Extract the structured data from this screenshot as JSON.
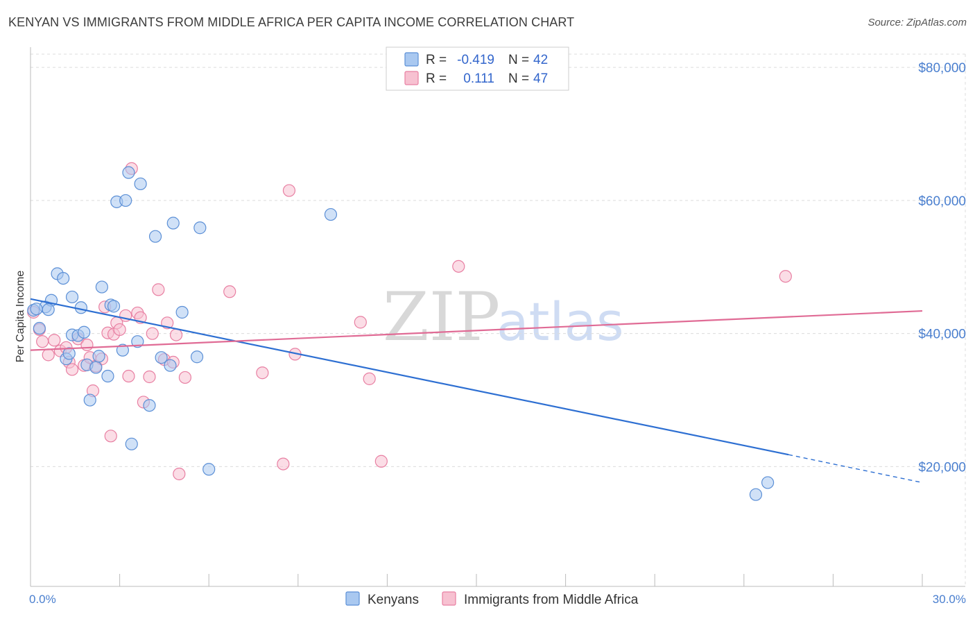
{
  "title": "KENYAN VS IMMIGRANTS FROM MIDDLE AFRICA PER CAPITA INCOME CORRELATION CHART",
  "source": "Source: ZipAtlas.com",
  "watermark": {
    "zip": "ZIP",
    "atlas": "atlas"
  },
  "colors": {
    "blue_fill": "#a9c8f0",
    "blue_stroke": "#5b8fd6",
    "blue_line": "#2d6fd2",
    "pink_fill": "#f7c1d1",
    "pink_stroke": "#e87fa2",
    "pink_line": "#e06b95",
    "axis_text": "#4a7fcf",
    "grid": "#dcdcdc"
  },
  "legend": {
    "rows": [
      {
        "r_label": "R =",
        "r_value": "-0.419",
        "n_label": "N =",
        "n_value": "42"
      },
      {
        "r_label": "R =",
        "r_value": "0.111",
        "n_label": "N =",
        "n_value": "47"
      }
    ]
  },
  "chart_data": {
    "type": "scatter",
    "title": "KENYAN VS IMMIGRANTS FROM MIDDLE AFRICA PER CAPITA INCOME CORRELATION CHART",
    "xlabel": "",
    "ylabel": "Per Capita Income",
    "xlim": [
      0,
      30
    ],
    "ylim": [
      2000,
      82000
    ],
    "x_tick_labels": [
      "0.0%",
      "30.0%"
    ],
    "y_ticks": [
      20000,
      40000,
      60000,
      80000
    ],
    "y_tick_labels": [
      "$20,000",
      "$40,000",
      "$60,000",
      "$80,000"
    ],
    "legend_bottom": [
      "Kenyans",
      "Immigrants from Middle Africa"
    ],
    "series": [
      {
        "name": "Kenyans",
        "trend": {
          "x0": 0,
          "y0": 45200,
          "x1": 25.5,
          "y1": 21800,
          "dash_x1": 30,
          "dash_y1": 17600
        },
        "points": [
          [
            0.1,
            43500
          ],
          [
            0.3,
            40800
          ],
          [
            0.5,
            44000
          ],
          [
            0.7,
            45000
          ],
          [
            0.9,
            49000
          ],
          [
            1.1,
            48300
          ],
          [
            1.2,
            36200
          ],
          [
            1.3,
            37000
          ],
          [
            1.4,
            39800
          ],
          [
            1.4,
            45500
          ],
          [
            1.6,
            39700
          ],
          [
            1.7,
            43900
          ],
          [
            1.8,
            40200
          ],
          [
            1.9,
            35300
          ],
          [
            2.0,
            30000
          ],
          [
            2.2,
            34900
          ],
          [
            2.3,
            36600
          ],
          [
            2.4,
            47000
          ],
          [
            2.6,
            33600
          ],
          [
            2.7,
            44300
          ],
          [
            2.8,
            44100
          ],
          [
            2.9,
            59800
          ],
          [
            3.1,
            37500
          ],
          [
            3.2,
            60000
          ],
          [
            3.3,
            64200
          ],
          [
            3.4,
            23400
          ],
          [
            3.6,
            38800
          ],
          [
            3.7,
            62500
          ],
          [
            4.0,
            29200
          ],
          [
            4.2,
            54600
          ],
          [
            4.4,
            36400
          ],
          [
            4.7,
            35200
          ],
          [
            4.8,
            56600
          ],
          [
            5.1,
            43200
          ],
          [
            5.6,
            36500
          ],
          [
            5.7,
            55900
          ],
          [
            6.0,
            19600
          ],
          [
            10.1,
            57900
          ],
          [
            24.4,
            15800
          ],
          [
            24.8,
            17600
          ],
          [
            0.2,
            43700
          ],
          [
            0.6,
            43600
          ]
        ]
      },
      {
        "name": "Immigrants from Middle Africa",
        "trend": {
          "x0": 0,
          "y0": 37500,
          "x1": 30,
          "y1": 43400
        },
        "points": [
          [
            0.1,
            43200
          ],
          [
            0.4,
            38800
          ],
          [
            0.6,
            36800
          ],
          [
            0.8,
            39000
          ],
          [
            1.0,
            37400
          ],
          [
            1.2,
            37900
          ],
          [
            1.3,
            35700
          ],
          [
            1.4,
            34600
          ],
          [
            1.6,
            39200
          ],
          [
            1.8,
            35200
          ],
          [
            1.9,
            38300
          ],
          [
            2.0,
            36400
          ],
          [
            2.1,
            31400
          ],
          [
            2.2,
            35100
          ],
          [
            2.4,
            36200
          ],
          [
            2.5,
            44000
          ],
          [
            2.6,
            40100
          ],
          [
            2.7,
            24600
          ],
          [
            2.8,
            39900
          ],
          [
            2.9,
            41600
          ],
          [
            3.0,
            40600
          ],
          [
            3.2,
            42700
          ],
          [
            3.3,
            33600
          ],
          [
            3.4,
            64800
          ],
          [
            3.6,
            43100
          ],
          [
            3.7,
            42400
          ],
          [
            3.8,
            29700
          ],
          [
            4.0,
            33500
          ],
          [
            4.1,
            40000
          ],
          [
            4.3,
            46600
          ],
          [
            4.5,
            36100
          ],
          [
            4.6,
            41600
          ],
          [
            4.8,
            35700
          ],
          [
            4.9,
            39800
          ],
          [
            5.0,
            18900
          ],
          [
            5.2,
            33400
          ],
          [
            6.7,
            46300
          ],
          [
            7.8,
            34100
          ],
          [
            8.5,
            20400
          ],
          [
            8.7,
            61500
          ],
          [
            8.9,
            36900
          ],
          [
            11.1,
            41700
          ],
          [
            11.4,
            33200
          ],
          [
            11.8,
            20800
          ],
          [
            14.4,
            50100
          ],
          [
            25.4,
            48600
          ],
          [
            0.3,
            40600
          ]
        ]
      }
    ]
  }
}
